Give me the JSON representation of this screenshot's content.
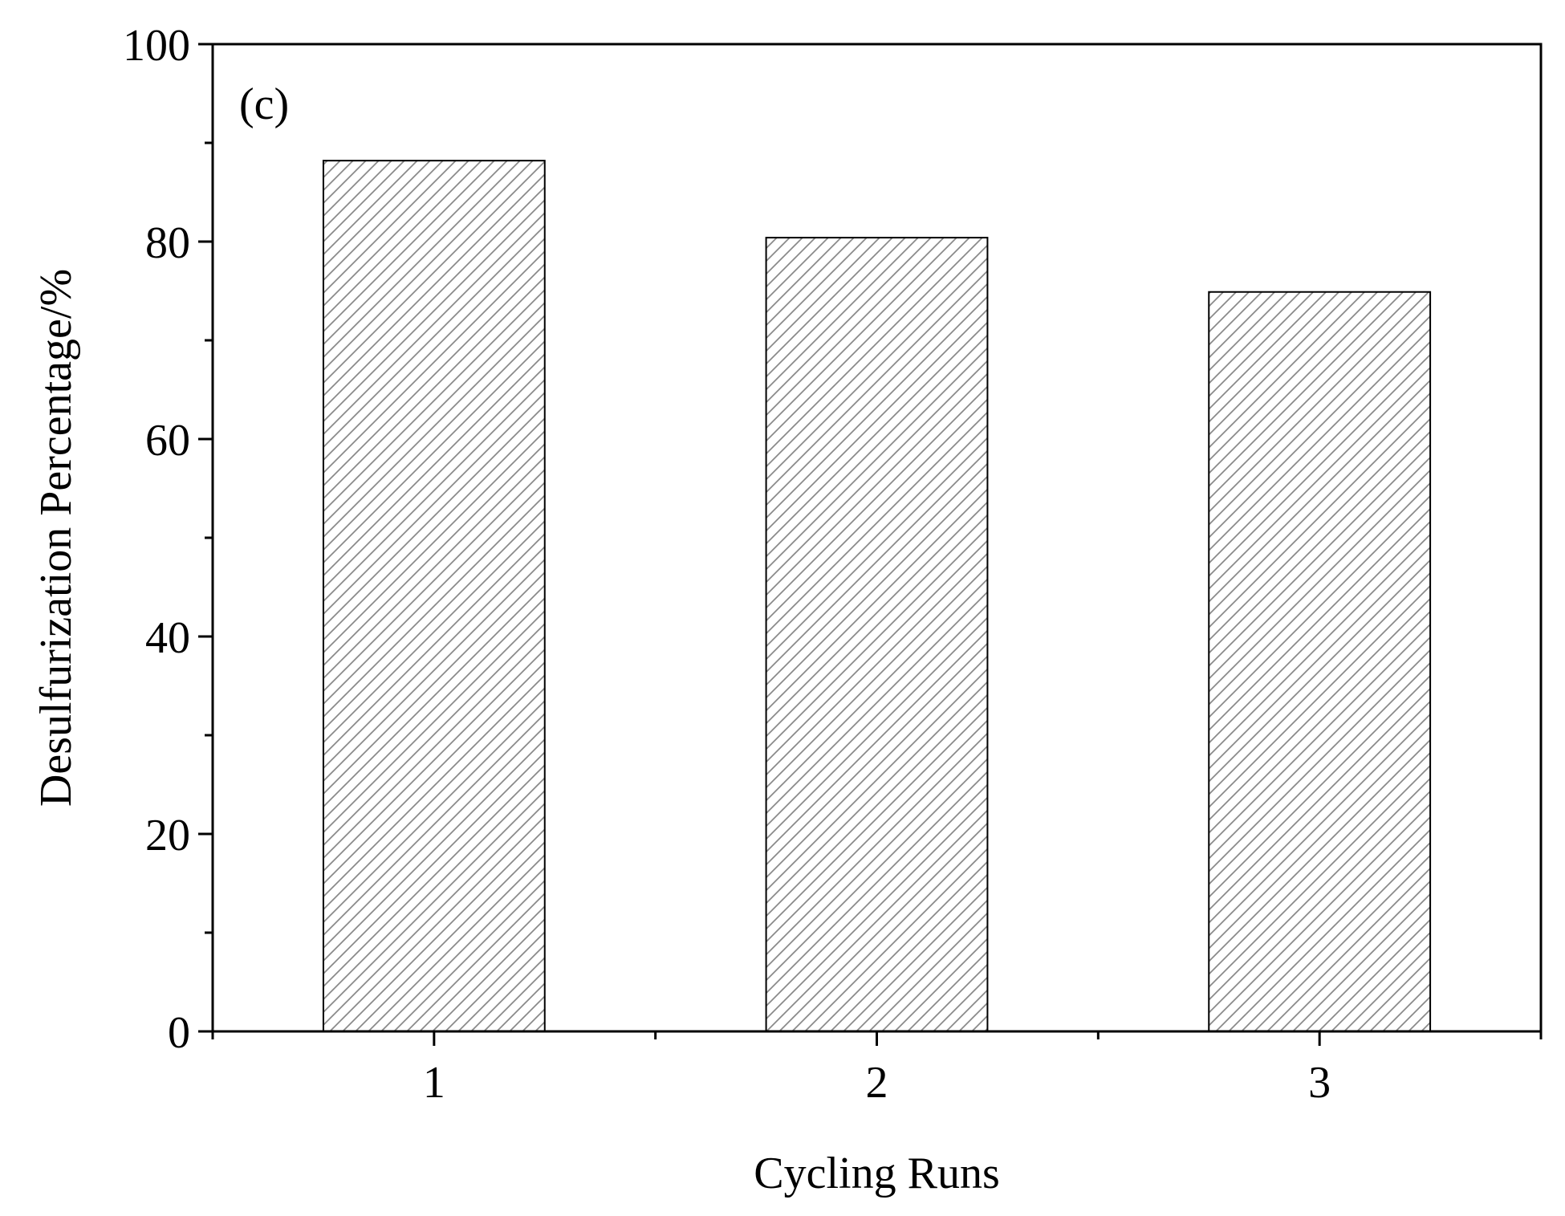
{
  "chart_data": {
    "type": "bar",
    "panel_label": "(c)",
    "categories": [
      "1",
      "2",
      "3"
    ],
    "values": [
      88.2,
      80.4,
      74.9
    ],
    "xlabel": "Cycling Runs",
    "ylabel": "Desulfurization Percentage/%",
    "ylim": [
      0,
      100
    ],
    "yticks": [
      0,
      20,
      40,
      60,
      80,
      100
    ],
    "yminor": [
      10,
      30,
      50,
      70,
      90
    ],
    "grid": false,
    "legend": "none",
    "bar_style": "diagonal-hatch",
    "colors": {
      "bar_fill": "#ffffff",
      "hatch": "#8a8a8a",
      "axis": "#000000"
    }
  }
}
